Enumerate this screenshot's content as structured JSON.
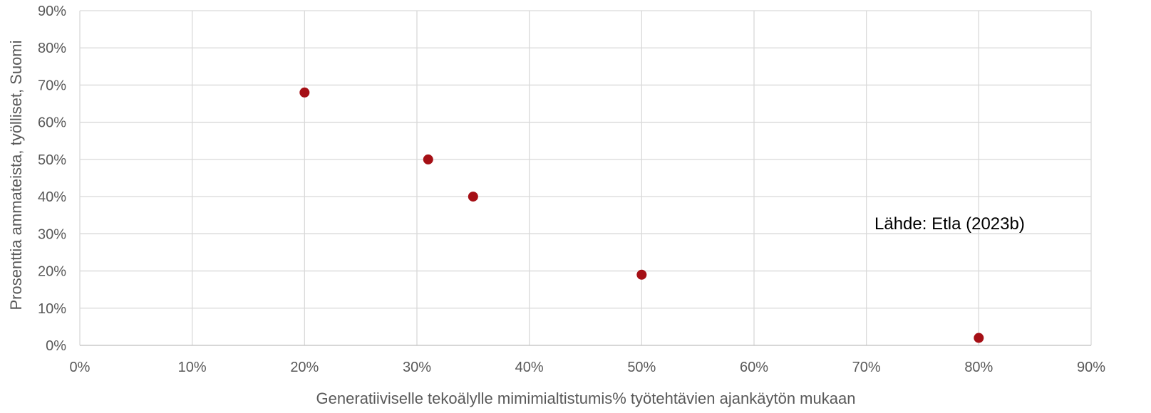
{
  "chart_data": {
    "type": "scatter",
    "title": "",
    "xlabel": "Generatiiviselle tekoälylle mimimialtistumis% työtehtävien ajankäytön mukaan",
    "ylabel": "Prosenttia ammateista, työlliset, Suomi",
    "xlim": [
      0,
      90
    ],
    "ylim": [
      0,
      90
    ],
    "x_ticks": [
      "0%",
      "10%",
      "20%",
      "30%",
      "40%",
      "50%",
      "60%",
      "70%",
      "80%",
      "90%"
    ],
    "y_ticks": [
      "0%",
      "10%",
      "20%",
      "30%",
      "40%",
      "50%",
      "60%",
      "70%",
      "80%",
      "90%"
    ],
    "grid": true,
    "points": [
      {
        "x": 20,
        "y": 68
      },
      {
        "x": 31,
        "y": 50
      },
      {
        "x": 35,
        "y": 40
      },
      {
        "x": 50,
        "y": 19
      },
      {
        "x": 80,
        "y": 2
      }
    ],
    "annotation": "Lähde: Etla (2023b)",
    "colors": {
      "marker": "#a50f15",
      "grid": "#d9d9d9",
      "text": "#595959"
    }
  }
}
